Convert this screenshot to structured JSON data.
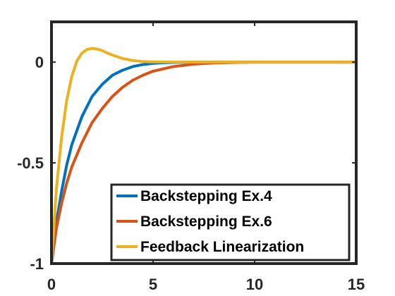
{
  "chart_data": {
    "type": "line",
    "title": "",
    "xlabel": "",
    "ylabel": "",
    "xlim": [
      0,
      15
    ],
    "ylim": [
      -1,
      0.2
    ],
    "xticks": [
      0,
      5,
      10,
      15
    ],
    "xtick_labels": [
      "0",
      "5",
      "10",
      "15"
    ],
    "yticks": [
      -1,
      -0.5,
      0
    ],
    "ytick_labels": [
      "-1",
      "-0.5",
      "0"
    ],
    "grid": false,
    "legend_location": "bottom-right",
    "series": [
      {
        "name": "Backstepping Ex.4",
        "color": "#0072BD",
        "x": [
          0,
          0.25,
          0.5,
          0.75,
          1,
          1.5,
          2,
          2.5,
          3,
          3.5,
          4,
          4.5,
          5,
          5.5,
          6,
          7,
          8,
          10,
          12,
          15
        ],
        "y": [
          -1,
          -0.79,
          -0.64,
          -0.51,
          -0.41,
          -0.27,
          -0.17,
          -0.11,
          -0.065,
          -0.04,
          -0.022,
          -0.012,
          -0.006,
          -0.003,
          -0.0015,
          0,
          0,
          0,
          0,
          0
        ]
      },
      {
        "name": "Backstepping Ex.6",
        "color": "#D95319",
        "x": [
          0,
          0.25,
          0.5,
          0.75,
          1,
          1.5,
          2,
          2.5,
          3,
          3.5,
          4,
          4.5,
          5,
          6,
          7,
          8,
          9,
          10,
          12,
          15
        ],
        "y": [
          -1,
          -0.82,
          -0.7,
          -0.6,
          -0.52,
          -0.4,
          -0.3,
          -0.23,
          -0.17,
          -0.125,
          -0.09,
          -0.065,
          -0.045,
          -0.022,
          -0.01,
          -0.004,
          -0.0015,
          0,
          0,
          0
        ]
      },
      {
        "name": "Feedback Linearization",
        "color": "#EDB120",
        "x": [
          0,
          0.25,
          0.5,
          0.75,
          1,
          1.25,
          1.5,
          1.75,
          2,
          2.25,
          2.5,
          2.75,
          3,
          3.5,
          4,
          4.5,
          5,
          6,
          8,
          10,
          15
        ],
        "y": [
          -1,
          -0.62,
          -0.37,
          -0.19,
          -0.07,
          0.005,
          0.045,
          0.063,
          0.068,
          0.065,
          0.057,
          0.045,
          0.035,
          0.018,
          0.008,
          0.003,
          0.001,
          0,
          0,
          0,
          0
        ]
      }
    ]
  }
}
